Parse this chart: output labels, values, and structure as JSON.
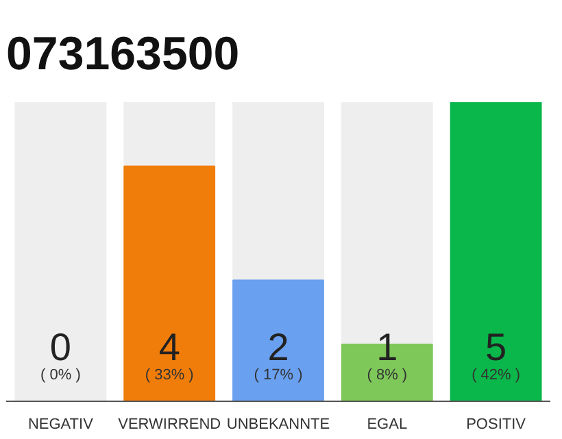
{
  "chart_data": {
    "type": "bar",
    "title": "073163500",
    "categories": [
      "NEGATIV",
      "VERWIRREND",
      "UNBEKANNTE",
      "EGAL",
      "POSITIV"
    ],
    "values": [
      0,
      33,
      17,
      8,
      42
    ],
    "colors": [
      "#7f7f7f",
      "#f07d0a",
      "#6aa0f0",
      "#7ec85a",
      "#0ab74a"
    ],
    "value_labels": [
      "( 0% )",
      "( 33% )",
      "( 17% )",
      "( 8% )",
      "( 42% )"
    ],
    "annotations": [
      {
        "text": "0",
        "x": "NEGATIV",
        "y": 0
      },
      {
        "text": "4",
        "x": "VERWIRREND",
        "y": 0
      },
      {
        "text": "2",
        "x": "UNBEKANNTE",
        "y": 0
      },
      {
        "text": "1",
        "x": "EGAL",
        "y": 0
      },
      {
        "text": "5",
        "x": "POSITIV",
        "y": 0
      }
    ],
    "grid": false
  }
}
